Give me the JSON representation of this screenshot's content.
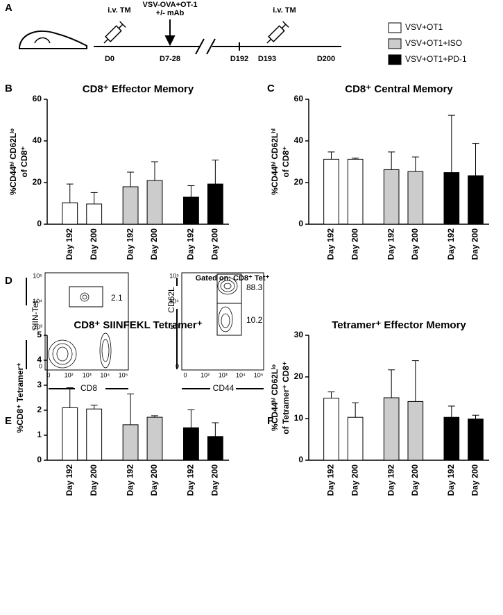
{
  "panels": [
    "A",
    "B",
    "C",
    "D",
    "E",
    "F"
  ],
  "timeline": {
    "events": [
      "i.v. TM",
      "VSV-OVA+OT-1",
      "+/- mAb",
      "i.v. TM"
    ],
    "days": [
      "D0",
      "D7-28",
      "D192",
      "D193",
      "D200"
    ]
  },
  "legend": [
    {
      "name": "VSV+OT1",
      "color": "#ffffff"
    },
    {
      "name": "VSV+OT1+ISO",
      "color": "#cccccc"
    },
    {
      "name": "VSV+OT1+PD-1",
      "color": "#000000"
    }
  ],
  "flow": {
    "title": "Gated on: CD8⁺ Tet⁺",
    "plots": [
      {
        "ylabel": "SIIN-Tet",
        "xlabel": "CD8",
        "gates": [
          "2.1"
        ],
        "yticks": [
          "10⁵",
          "10⁴",
          "10³",
          "0"
        ],
        "xticks": [
          "0",
          "10²",
          "10³",
          "10⁴",
          "10⁵"
        ]
      },
      {
        "ylabel": "CD62L",
        "xlabel": "CD44",
        "gates": [
          "88.3",
          "10.2"
        ],
        "yticks": [
          "10⁵",
          "10⁴",
          "10³",
          "0"
        ],
        "xticks": [
          "0",
          "10²",
          "10³",
          "10⁴",
          "10⁵"
        ]
      }
    ]
  },
  "chart_data": [
    {
      "type": "bar",
      "title": "CD8⁺ Effector Memory",
      "ylabel": [
        "%CD44ʰⁱ CD62Lˡᵒ",
        "of CD8⁺"
      ],
      "categories": [
        "Day 192",
        "Day 200"
      ],
      "ylim": [
        0,
        60
      ],
      "yticks": [
        0,
        20,
        40,
        60
      ],
      "series": [
        {
          "color": "#ffffff",
          "values": [
            10.3,
            9.7
          ],
          "errors": [
            9,
            5.5
          ]
        },
        {
          "color": "#cccccc",
          "values": [
            18,
            21
          ],
          "errors": [
            7,
            9
          ]
        },
        {
          "color": "#000000",
          "values": [
            13,
            19.3
          ],
          "errors": [
            5.5,
            11.5
          ]
        }
      ]
    },
    {
      "type": "bar",
      "title": "CD8⁺ Central Memory",
      "ylabel": [
        "%CD44ʰⁱ CD62Lʰⁱ",
        "of CD8⁺"
      ],
      "categories": [
        "Day 192",
        "Day 200"
      ],
      "ylim": [
        0,
        60
      ],
      "yticks": [
        0,
        20,
        40,
        60
      ],
      "series": [
        {
          "color": "#ffffff",
          "values": [
            31.2,
            31.2
          ],
          "errors": [
            3.5,
            0.5
          ]
        },
        {
          "color": "#cccccc",
          "values": [
            26.2,
            25.3
          ],
          "errors": [
            8.5,
            7
          ]
        },
        {
          "color": "#000000",
          "values": [
            24.8,
            23.3
          ],
          "errors": [
            27.5,
            15.5
          ]
        }
      ]
    },
    {
      "type": "bar",
      "title": "CD8⁺ SIINFEKL Tetramer⁺",
      "ylabel": [
        "%CD8⁺ Tetramer⁺"
      ],
      "categories": [
        "Day 192",
        "Day 200"
      ],
      "ylim": [
        0,
        5
      ],
      "yticks": [
        0,
        1,
        2,
        3,
        4,
        5
      ],
      "series": [
        {
          "color": "#ffffff",
          "values": [
            2.1,
            2.05
          ],
          "errors": [
            0.8,
            0.15
          ]
        },
        {
          "color": "#cccccc",
          "values": [
            1.42,
            1.72
          ],
          "errors": [
            1.23,
            0.06
          ]
        },
        {
          "color": "#000000",
          "values": [
            1.3,
            0.95
          ],
          "errors": [
            0.72,
            0.55
          ]
        }
      ]
    },
    {
      "type": "bar",
      "title": "Tetramer⁺ Effector Memory",
      "ylabel": [
        "%CD44ʰⁱ CD62Lˡᵒ",
        "of Tetramer⁺ CD8⁺"
      ],
      "categories": [
        "Day 192",
        "Day 200"
      ],
      "ylim": [
        0,
        30
      ],
      "yticks": [
        0,
        10,
        20,
        30
      ],
      "series": [
        {
          "color": "#ffffff",
          "values": [
            14.9,
            10.3
          ],
          "errors": [
            1.5,
            3.5
          ]
        },
        {
          "color": "#cccccc",
          "values": [
            15,
            14.1
          ],
          "errors": [
            6.7,
            9.8
          ]
        },
        {
          "color": "#000000",
          "values": [
            10.3,
            9.9
          ],
          "errors": [
            2.7,
            0.9
          ]
        }
      ]
    }
  ]
}
